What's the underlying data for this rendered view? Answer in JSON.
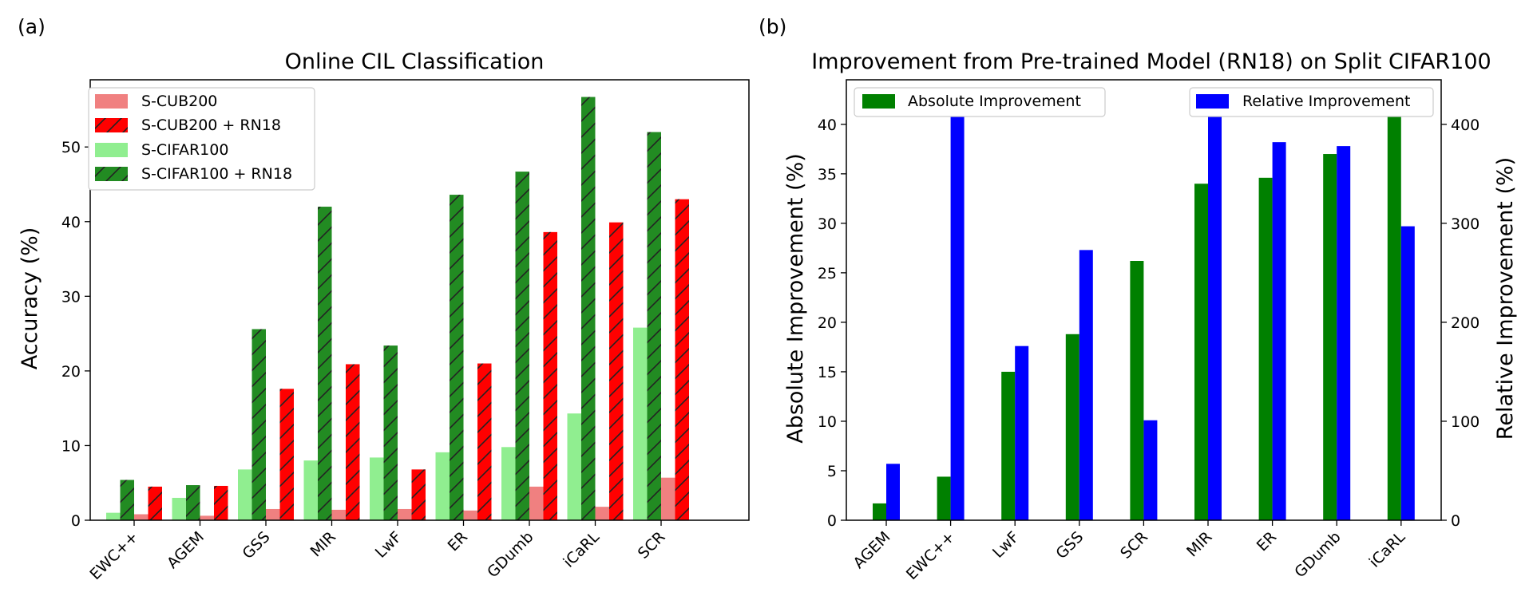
{
  "figure": {
    "panel_a_label": "(a)",
    "panel_b_label": "(b)"
  },
  "colors": {
    "s_cub200": "#f08080",
    "s_cub200_rn18": "#ff0000",
    "s_cifar100": "#90ee90",
    "s_cifar100_rn18": "#228b22",
    "absolute": "#008000",
    "relative": "#0000ff",
    "hatch": "#222222"
  },
  "chart_data": [
    {
      "type": "bar",
      "title": "Online CIL Classification",
      "xlabel": "",
      "ylabel": "Accuracy (%)",
      "ylim": [
        0,
        59
      ],
      "yticks": [
        0,
        10,
        20,
        30,
        40,
        50
      ],
      "categories": [
        "EWC++",
        "AGEM",
        "GSS",
        "MIR",
        "LwF",
        "ER",
        "GDumb",
        "iCaRL",
        "SCR"
      ],
      "series": [
        {
          "name": "S-CIFAR100",
          "values": [
            1.0,
            3.0,
            6.8,
            8.0,
            8.4,
            9.1,
            9.8,
            14.3,
            25.8
          ]
        },
        {
          "name": "S-CIFAR100 + RN18",
          "values": [
            5.4,
            4.7,
            25.6,
            42.0,
            23.4,
            43.6,
            46.7,
            56.7,
            52.0
          ]
        },
        {
          "name": "S-CUB200",
          "values": [
            0.8,
            0.6,
            1.5,
            1.4,
            1.5,
            1.3,
            4.5,
            1.8,
            5.7
          ]
        },
        {
          "name": "S-CUB200 + RN18",
          "values": [
            4.5,
            4.6,
            17.6,
            20.9,
            6.8,
            21.0,
            38.6,
            39.9,
            43.0
          ]
        }
      ],
      "legend": {
        "placement": "top-left",
        "entries": [
          "S-CUB200",
          "S-CUB200 + RN18",
          "S-CIFAR100",
          "S-CIFAR100 + RN18"
        ]
      },
      "grid": false
    },
    {
      "type": "bar",
      "title": "Improvement from Pre-trained Model (RN18) on Split CIFAR100",
      "xlabel": "",
      "ylabel": "Absolute Improvement (%)",
      "ylabel_right": "Relative Improvement (%)",
      "ylim": [
        0,
        44.5
      ],
      "ylim_right": [
        0,
        445
      ],
      "yticks": [
        0,
        5,
        10,
        15,
        20,
        25,
        30,
        35,
        40
      ],
      "yticks_right": [
        0,
        100,
        200,
        300,
        400
      ],
      "categories": [
        "AGEM",
        "EWC++",
        "LwF",
        "GSS",
        "SCR",
        "MIR",
        "ER",
        "GDumb",
        "iCaRL"
      ],
      "series": [
        {
          "name": "Absolute Improvement",
          "axis": "left",
          "values": [
            1.7,
            4.4,
            15.0,
            18.8,
            26.2,
            34.0,
            34.6,
            37.0,
            42.4
          ]
        },
        {
          "name": "Relative Improvement",
          "axis": "right",
          "values": [
            57,
            435,
            176,
            273,
            101,
            424,
            382,
            378,
            297
          ]
        }
      ],
      "legend": {
        "placement": "top",
        "entries": [
          "Absolute Improvement",
          "Relative Improvement"
        ]
      },
      "grid": false
    }
  ]
}
